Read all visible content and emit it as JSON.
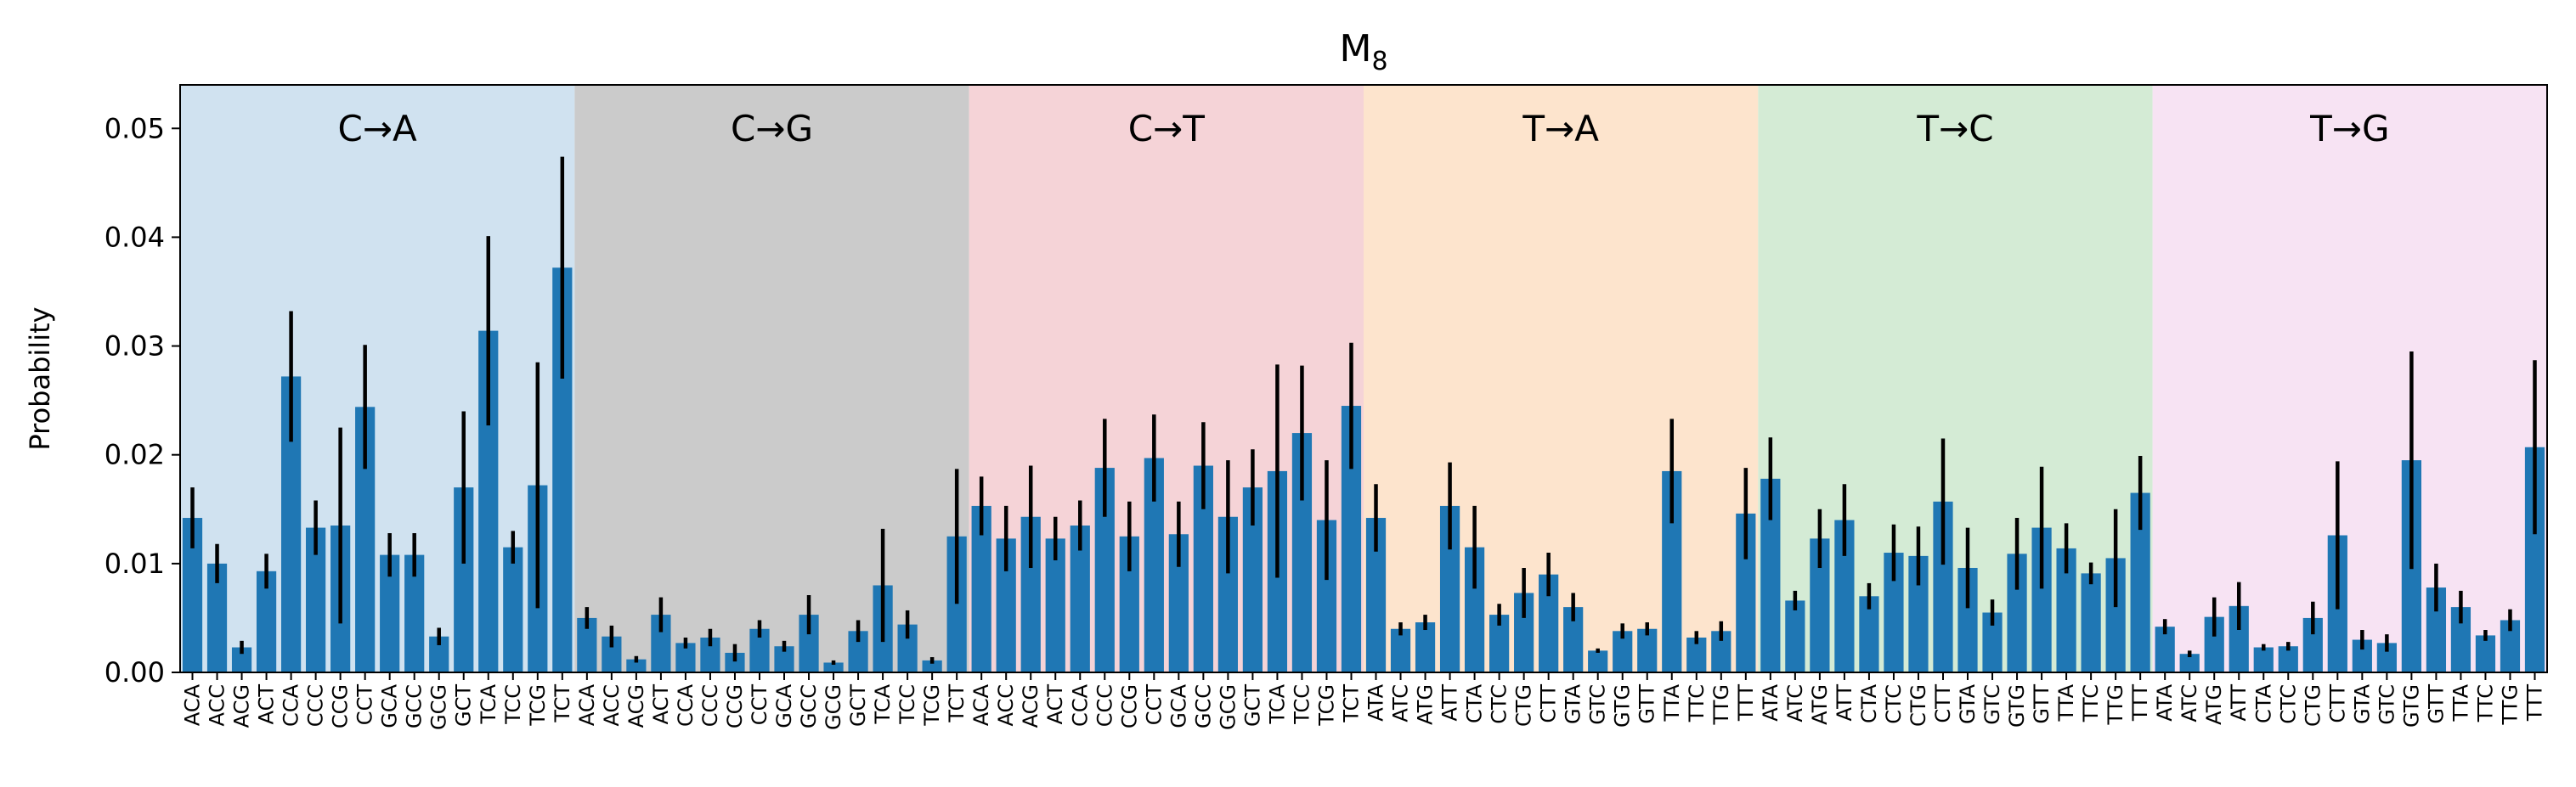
{
  "chart_data": {
    "type": "bar",
    "title_main": "M",
    "title_sub": "8",
    "xlabel": "",
    "ylabel": "Probability",
    "ylim": [
      0,
      0.054
    ],
    "yticks": [
      "0.00",
      "0.01",
      "0.02",
      "0.03",
      "0.04",
      "0.05"
    ],
    "ytick_values": [
      0,
      0.01,
      0.02,
      0.03,
      0.04,
      0.05
    ],
    "grid": false,
    "bar_color": "#1f77b4",
    "errorbar_color": "#000000",
    "groups": [
      {
        "label": "C→A",
        "color": "#d0e2f0"
      },
      {
        "label": "C→G",
        "color": "#cbcbcb"
      },
      {
        "label": "C→T",
        "color": "#f5d3d7"
      },
      {
        "label": "T→A",
        "color": "#fde4cd"
      },
      {
        "label": "T→C",
        "color": "#d4ebd5"
      },
      {
        "label": "T→G",
        "color": "#f7e3f3"
      }
    ],
    "categories": [
      "ACA",
      "ACC",
      "ACG",
      "ACT",
      "CCA",
      "CCC",
      "CCG",
      "CCT",
      "GCA",
      "GCC",
      "GCG",
      "GCT",
      "TCA",
      "TCC",
      "TCG",
      "TCT",
      "ACA",
      "ACC",
      "ACG",
      "ACT",
      "CCA",
      "CCC",
      "CCG",
      "CCT",
      "GCA",
      "GCC",
      "GCG",
      "GCT",
      "TCA",
      "TCC",
      "TCG",
      "TCT",
      "ACA",
      "ACC",
      "ACG",
      "ACT",
      "CCA",
      "CCC",
      "CCG",
      "CCT",
      "GCA",
      "GCC",
      "GCG",
      "GCT",
      "TCA",
      "TCC",
      "TCG",
      "TCT",
      "ATA",
      "ATC",
      "ATG",
      "ATT",
      "CTA",
      "CTC",
      "CTG",
      "CTT",
      "GTA",
      "GTC",
      "GTG",
      "GTT",
      "TTA",
      "TTC",
      "TTG",
      "TTT",
      "ATA",
      "ATC",
      "ATG",
      "ATT",
      "CTA",
      "CTC",
      "CTG",
      "CTT",
      "GTA",
      "GTC",
      "GTG",
      "GTT",
      "TTA",
      "TTC",
      "TTG",
      "TTT",
      "ATA",
      "ATC",
      "ATG",
      "ATT",
      "CTA",
      "CTC",
      "CTG",
      "CTT",
      "GTA",
      "GTC",
      "GTG",
      "GTT",
      "TTA",
      "TTC",
      "TTG",
      "TTT"
    ],
    "values": [
      0.0142,
      0.01,
      0.0023,
      0.0093,
      0.0272,
      0.0133,
      0.0135,
      0.0244,
      0.0108,
      0.0108,
      0.0033,
      0.017,
      0.0314,
      0.0115,
      0.0172,
      0.0372,
      0.005,
      0.0033,
      0.0012,
      0.0053,
      0.0027,
      0.0032,
      0.0018,
      0.004,
      0.0024,
      0.0053,
      0.0009,
      0.0038,
      0.008,
      0.0044,
      0.0011,
      0.0125,
      0.0153,
      0.0123,
      0.0143,
      0.0123,
      0.0135,
      0.0188,
      0.0125,
      0.0197,
      0.0127,
      0.019,
      0.0143,
      0.017,
      0.0185,
      0.022,
      0.014,
      0.0245,
      0.0142,
      0.004,
      0.0046,
      0.0153,
      0.0115,
      0.0053,
      0.0073,
      0.009,
      0.006,
      0.002,
      0.0038,
      0.004,
      0.0185,
      0.0032,
      0.0038,
      0.0146,
      0.0178,
      0.0066,
      0.0123,
      0.014,
      0.007,
      0.011,
      0.0107,
      0.0157,
      0.0096,
      0.0055,
      0.0109,
      0.0133,
      0.0114,
      0.0091,
      0.0105,
      0.0165,
      0.0042,
      0.0017,
      0.0051,
      0.0061,
      0.0023,
      0.0024,
      0.005,
      0.0126,
      0.003,
      0.0027,
      0.0195,
      0.0078,
      0.006,
      0.0034,
      0.0048,
      0.0207
    ],
    "errors": [
      0.0028,
      0.0018,
      0.0006,
      0.0016,
      0.006,
      0.0025,
      0.009,
      0.0057,
      0.002,
      0.002,
      0.0008,
      0.007,
      0.0087,
      0.0015,
      0.0113,
      0.0102,
      0.001,
      0.001,
      0.0003,
      0.0016,
      0.0005,
      0.0008,
      0.0008,
      0.0008,
      0.0005,
      0.0018,
      0.0002,
      0.001,
      0.0052,
      0.0013,
      0.0003,
      0.0062,
      0.0027,
      0.003,
      0.0047,
      0.002,
      0.0023,
      0.0045,
      0.0032,
      0.004,
      0.003,
      0.004,
      0.0052,
      0.0035,
      0.0098,
      0.0062,
      0.0055,
      0.0058,
      0.0031,
      0.0006,
      0.0007,
      0.004,
      0.0038,
      0.001,
      0.0023,
      0.002,
      0.0013,
      0.0002,
      0.0007,
      0.0006,
      0.0048,
      0.0006,
      0.0009,
      0.0042,
      0.0038,
      0.0009,
      0.0027,
      0.0033,
      0.0012,
      0.0026,
      0.0027,
      0.0058,
      0.0037,
      0.0012,
      0.0033,
      0.0056,
      0.0023,
      0.001,
      0.0045,
      0.0034,
      0.0007,
      0.0003,
      0.0018,
      0.0022,
      0.0003,
      0.0004,
      0.0015,
      0.0068,
      0.0009,
      0.0008,
      0.01,
      0.0022,
      0.0015,
      0.0005,
      0.001,
      0.008
    ]
  }
}
